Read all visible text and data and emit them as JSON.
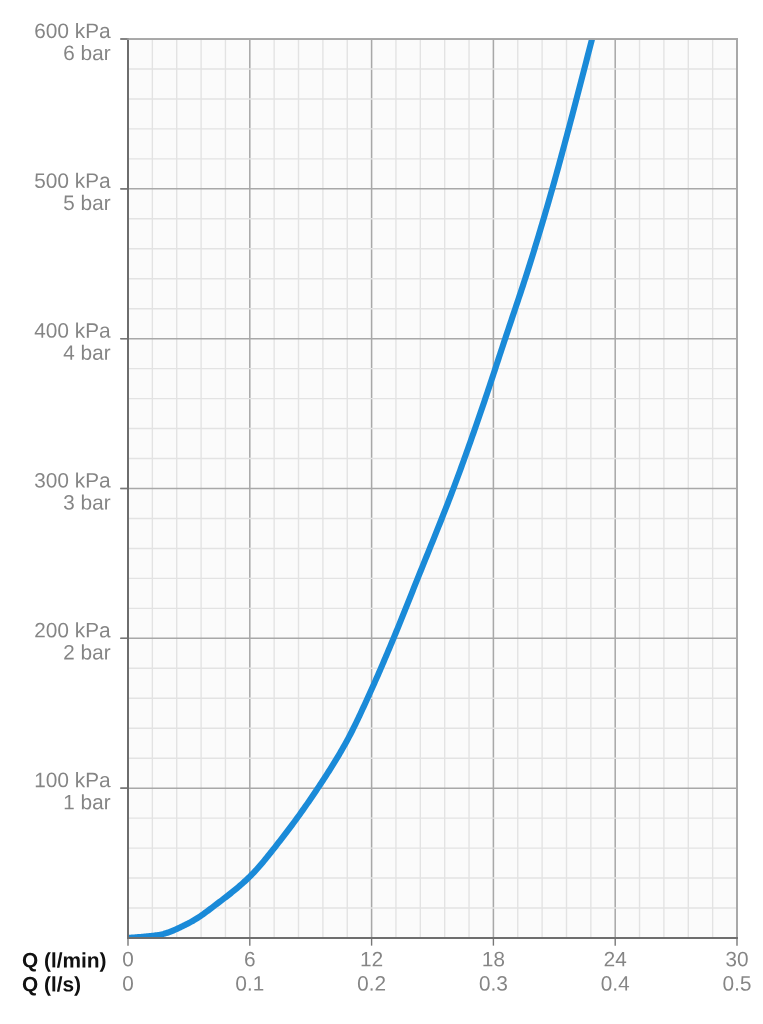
{
  "chart_data": {
    "type": "line",
    "xlabel": "Q (l/min)",
    "x2label": "Q (l/s)",
    "x": [
      0,
      1.5,
      3.0,
      4.5,
      6,
      7.55,
      9.35,
      10.8,
      12,
      13.08,
      14.27,
      16.03,
      17.35,
      18.58,
      19.8,
      20.9,
      21.9,
      22.86
    ],
    "series": [
      {
        "color": "#1a8ad8",
        "values": [
          0,
          2,
          10,
          24,
          41,
          66,
          100,
          132,
          166,
          200,
          240,
          300,
          350,
          400,
          450,
          500,
          550,
          600
        ]
      }
    ],
    "xlim": [
      0,
      30
    ],
    "xticks": [
      0,
      {
        "value": 1.2,
        "label": null
      },
      {
        "value": 2.4,
        "label": null
      },
      {
        "value": 3.6,
        "label": null
      },
      {
        "value": 4.8,
        "label": null
      },
      6,
      {
        "value": 7.2,
        "label": null
      },
      {
        "value": 8.4,
        "label": null
      },
      {
        "value": 9.6,
        "label": null
      },
      {
        "value": 10.8,
        "label": null
      },
      12,
      {
        "value": 13.2,
        "label": null
      },
      {
        "value": 14.4,
        "label": null
      },
      {
        "value": 15.6,
        "label": null
      },
      {
        "value": 16.8,
        "label": null
      },
      18,
      {
        "value": 19.2,
        "label": null
      },
      {
        "value": 20.4,
        "label": null
      },
      {
        "value": 21.6,
        "label": null
      },
      {
        "value": 22.8,
        "label": null
      },
      24,
      {
        "value": 25.2,
        "label": null
      },
      {
        "value": 26.4,
        "label": null
      },
      {
        "value": 27.6,
        "label": null
      },
      {
        "value": 28.8,
        "label": null
      },
      30
    ],
    "x2lim": [
      0,
      0.5
    ],
    "x2ticks": [
      0,
      0.1,
      0.2,
      0.3,
      0.4,
      0.5
    ],
    "ylim": [
      0,
      600
    ],
    "yticks": [
      {
        "value": 20,
        "label": null
      },
      {
        "value": 40,
        "label": null
      },
      {
        "value": 60,
        "label": null
      },
      {
        "value": 80,
        "label": null
      },
      {
        "value": 100,
        "label": "100 kPa"
      },
      {
        "value": 120,
        "label": null
      },
      {
        "value": 140,
        "label": null
      },
      {
        "value": 160,
        "label": null
      },
      {
        "value": 180,
        "label": null
      },
      {
        "value": 200,
        "label": "200 kPa"
      },
      {
        "value": 220,
        "label": null
      },
      {
        "value": 240,
        "label": null
      },
      {
        "value": 260,
        "label": null
      },
      {
        "value": 280,
        "label": null
      },
      {
        "value": 300,
        "label": "300 kPa"
      },
      {
        "value": 320,
        "label": null
      },
      {
        "value": 340,
        "label": null
      },
      {
        "value": 360,
        "label": null
      },
      {
        "value": 380,
        "label": null
      },
      {
        "value": 400,
        "label": "400 kPa"
      },
      {
        "value": 420,
        "label": null
      },
      {
        "value": 440,
        "label": null
      },
      {
        "value": 460,
        "label": null
      },
      {
        "value": 480,
        "label": null
      },
      {
        "value": 500,
        "label": "500 kPa"
      },
      {
        "value": 520,
        "label": null
      },
      {
        "value": 540,
        "label": null
      },
      {
        "value": 560,
        "label": null
      },
      {
        "value": 580,
        "label": null
      },
      {
        "value": 600,
        "label": "600 kPa"
      }
    ],
    "y2lim": [
      0,
      6
    ],
    "y2ticks": [
      {
        "value": 1,
        "label": "1 bar"
      },
      {
        "value": 2,
        "label": "2 bar"
      },
      {
        "value": 3,
        "label": "3 bar"
      },
      {
        "value": 4,
        "label": "4 bar"
      },
      {
        "value": 5,
        "label": "5 bar"
      },
      {
        "value": 6,
        "label": "6 bar"
      }
    ],
    "grid": true
  }
}
